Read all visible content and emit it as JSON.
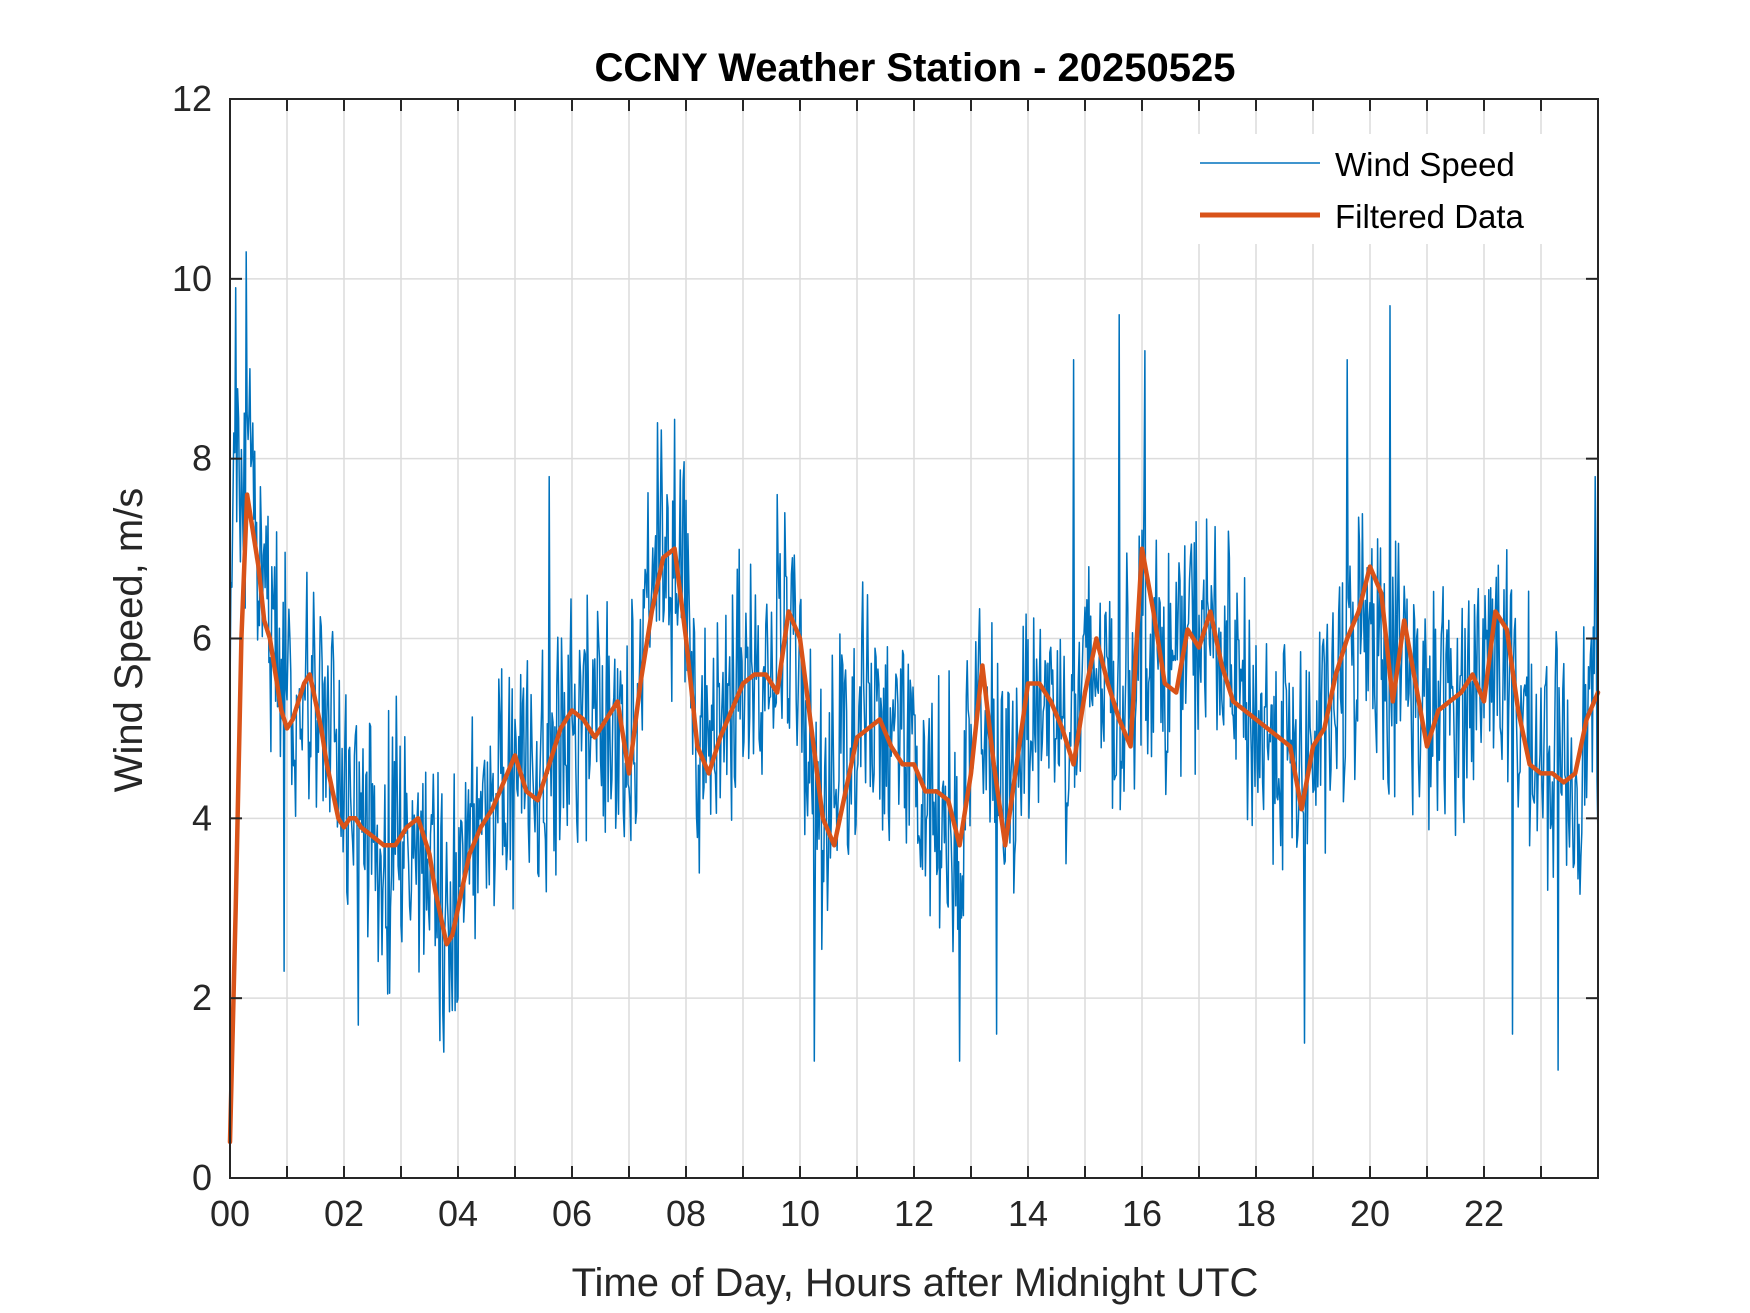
{
  "chart_data": {
    "type": "line",
    "title": "CCNY Weather Station - 20250525",
    "xlabel": "Time of Day, Hours after Midnight UTC",
    "ylabel": "Wind Speed, m/s",
    "xlim": [
      0,
      24
    ],
    "ylim": [
      0,
      12
    ],
    "x_ticks": [
      0,
      2,
      4,
      6,
      8,
      10,
      12,
      14,
      16,
      18,
      20,
      22
    ],
    "x_tick_labels": [
      "00",
      "02",
      "04",
      "06",
      "08",
      "10",
      "12",
      "14",
      "16",
      "18",
      "20",
      "22"
    ],
    "y_ticks": [
      0,
      2,
      4,
      6,
      8,
      10,
      12
    ],
    "y_tick_labels": [
      "0",
      "2",
      "4",
      "6",
      "8",
      "10",
      "12"
    ],
    "grid": true,
    "x_minor_grid_step": 1,
    "legend_position": "top-right",
    "series": [
      {
        "name": "Wind Speed",
        "color": "#0072BD",
        "line_width": 1.5,
        "noise_amplitude": 1.3,
        "x": [
          0,
          0.1,
          0.2,
          0.3,
          0.4,
          0.5,
          0.7,
          1.0,
          1.2,
          1.4,
          1.6,
          1.8,
          2.0,
          2.2,
          2.4,
          2.6,
          2.8,
          3.0,
          3.3,
          3.5,
          3.7,
          3.9,
          4.1,
          4.3,
          4.6,
          5.0,
          5.4,
          5.8,
          6.2,
          6.6,
          7.0,
          7.3,
          7.6,
          7.9,
          8.2,
          8.5,
          8.8,
          9.2,
          9.5,
          9.8,
          10.0,
          10.2,
          10.4,
          10.6,
          10.8,
          11.2,
          11.6,
          12.0,
          12.4,
          12.8,
          13.0,
          13.2,
          13.4,
          13.6,
          14.0,
          14.4,
          14.8,
          15.0,
          15.3,
          15.6,
          16.0,
          16.4,
          16.8,
          17.2,
          17.6,
          18.0,
          18.4,
          18.8,
          19.2,
          19.6,
          20.0,
          20.3,
          20.6,
          21.0,
          21.4,
          21.8,
          22.2,
          22.6,
          23.0,
          23.3,
          23.6,
          23.9
        ],
        "values": [
          5.5,
          8.5,
          7.5,
          8.0,
          7.3,
          6.8,
          6.0,
          5.5,
          5.2,
          5.3,
          5.5,
          5.2,
          4.2,
          3.9,
          3.8,
          3.7,
          3.6,
          3.8,
          3.7,
          3.5,
          3.0,
          2.8,
          3.5,
          4.0,
          4.3,
          4.6,
          4.5,
          4.9,
          5.2,
          5.1,
          5.0,
          6.0,
          7.0,
          6.8,
          5.0,
          4.8,
          5.5,
          5.6,
          5.7,
          6.2,
          5.5,
          4.5,
          3.8,
          4.6,
          5.0,
          5.2,
          4.8,
          4.5,
          4.3,
          3.9,
          4.5,
          5.5,
          4.5,
          4.2,
          5.3,
          5.3,
          5.0,
          5.5,
          5.8,
          5.1,
          6.2,
          5.6,
          6.0,
          6.1,
          5.5,
          5.0,
          4.9,
          4.5,
          5.0,
          5.6,
          6.5,
          5.6,
          5.8,
          5.1,
          5.3,
          5.4,
          6.1,
          5.2,
          4.6,
          4.6,
          4.4,
          5.3
        ],
        "spikes": [
          {
            "x": 0.1,
            "y": 9.9
          },
          {
            "x": 0.28,
            "y": 10.3
          },
          {
            "x": 0.35,
            "y": 9.0
          },
          {
            "x": 0.95,
            "y": 2.3
          },
          {
            "x": 2.25,
            "y": 1.7
          },
          {
            "x": 3.75,
            "y": 1.4
          },
          {
            "x": 5.6,
            "y": 7.8
          },
          {
            "x": 7.5,
            "y": 8.4
          },
          {
            "x": 9.6,
            "y": 7.6
          },
          {
            "x": 10.25,
            "y": 1.3
          },
          {
            "x": 12.8,
            "y": 1.3
          },
          {
            "x": 13.45,
            "y": 1.6
          },
          {
            "x": 14.8,
            "y": 9.1
          },
          {
            "x": 15.6,
            "y": 9.6
          },
          {
            "x": 16.05,
            "y": 9.2
          },
          {
            "x": 18.85,
            "y": 1.5
          },
          {
            "x": 19.6,
            "y": 9.1
          },
          {
            "x": 20.35,
            "y": 9.7
          },
          {
            "x": 22.5,
            "y": 1.6
          },
          {
            "x": 23.3,
            "y": 1.2
          },
          {
            "x": 23.95,
            "y": 7.8
          }
        ]
      },
      {
        "name": "Filtered Data",
        "color": "#D95319",
        "line_width": 4.5,
        "x": [
          0,
          0.1,
          0.2,
          0.3,
          0.4,
          0.5,
          0.6,
          0.7,
          0.8,
          0.9,
          1.0,
          1.1,
          1.2,
          1.3,
          1.4,
          1.5,
          1.6,
          1.7,
          1.8,
          1.9,
          2.0,
          2.1,
          2.2,
          2.3,
          2.5,
          2.7,
          2.9,
          3.1,
          3.3,
          3.5,
          3.6,
          3.7,
          3.8,
          3.9,
          4.0,
          4.2,
          4.4,
          4.6,
          4.8,
          5.0,
          5.2,
          5.4,
          5.6,
          5.8,
          6.0,
          6.2,
          6.4,
          6.6,
          6.8,
          7.0,
          7.2,
          7.4,
          7.6,
          7.8,
          8.0,
          8.2,
          8.4,
          8.6,
          8.8,
          9.0,
          9.2,
          9.4,
          9.6,
          9.8,
          10.0,
          10.2,
          10.4,
          10.6,
          10.8,
          11.0,
          11.2,
          11.4,
          11.6,
          11.8,
          12.0,
          12.2,
          12.4,
          12.6,
          12.8,
          13.0,
          13.2,
          13.4,
          13.6,
          13.8,
          14.0,
          14.2,
          14.4,
          14.6,
          14.8,
          15.0,
          15.2,
          15.4,
          15.6,
          15.8,
          16.0,
          16.2,
          16.4,
          16.6,
          16.8,
          17.0,
          17.2,
          17.4,
          17.6,
          17.8,
          18.0,
          18.2,
          18.4,
          18.6,
          18.8,
          19.0,
          19.2,
          19.4,
          19.6,
          19.8,
          20.0,
          20.2,
          20.4,
          20.6,
          20.8,
          21.0,
          21.2,
          21.4,
          21.6,
          21.8,
          22.0,
          22.2,
          22.4,
          22.6,
          22.8,
          23.0,
          23.2,
          23.4,
          23.6,
          23.8,
          24.0
        ],
        "values": [
          0.4,
          3.0,
          6.0,
          7.6,
          7.2,
          6.8,
          6.2,
          6.0,
          5.6,
          5.2,
          5.0,
          5.1,
          5.3,
          5.5,
          5.6,
          5.3,
          5.0,
          4.6,
          4.3,
          4.0,
          3.9,
          4.0,
          4.0,
          3.9,
          3.8,
          3.7,
          3.7,
          3.9,
          4.0,
          3.6,
          3.2,
          2.9,
          2.6,
          2.7,
          3.0,
          3.6,
          3.9,
          4.1,
          4.4,
          4.7,
          4.3,
          4.2,
          4.6,
          5.0,
          5.2,
          5.1,
          4.9,
          5.1,
          5.3,
          4.5,
          5.5,
          6.3,
          6.9,
          7.0,
          6.0,
          4.8,
          4.5,
          4.9,
          5.2,
          5.5,
          5.6,
          5.6,
          5.4,
          6.3,
          6.0,
          5.0,
          4.0,
          3.7,
          4.3,
          4.9,
          5.0,
          5.1,
          4.8,
          4.6,
          4.6,
          4.3,
          4.3,
          4.2,
          3.7,
          4.5,
          5.7,
          4.6,
          3.7,
          4.6,
          5.5,
          5.5,
          5.3,
          5.0,
          4.6,
          5.4,
          6.0,
          5.5,
          5.1,
          4.8,
          7.0,
          6.3,
          5.5,
          5.4,
          6.1,
          5.9,
          6.3,
          5.7,
          5.3,
          5.2,
          5.1,
          5.0,
          4.9,
          4.8,
          4.1,
          4.8,
          5.0,
          5.6,
          6.0,
          6.3,
          6.8,
          6.5,
          5.3,
          6.2,
          5.5,
          4.8,
          5.2,
          5.3,
          5.4,
          5.6,
          5.3,
          6.3,
          6.1,
          5.2,
          4.6,
          4.5,
          4.5,
          4.4,
          4.5,
          5.1,
          5.4
        ]
      }
    ]
  }
}
